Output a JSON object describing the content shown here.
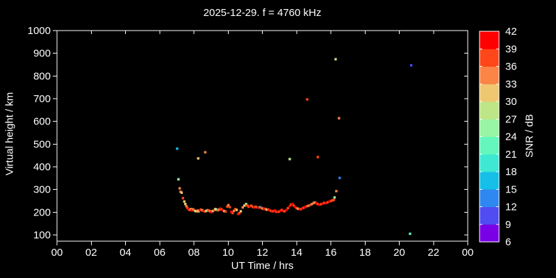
{
  "title": "2025-12-29. f = 4760 kHz",
  "axes": {
    "x": {
      "label": "UT Time / hrs",
      "tick_hours": [
        0,
        2,
        4,
        6,
        8,
        10,
        12,
        14,
        16,
        18,
        20,
        22,
        24
      ],
      "tick_labels": [
        "00",
        "02",
        "04",
        "06",
        "08",
        "10",
        "12",
        "14",
        "16",
        "18",
        "20",
        "22",
        "00"
      ]
    },
    "y": {
      "label": "Virtual height / km",
      "tick_values": [
        100,
        200,
        300,
        400,
        500,
        600,
        700,
        800,
        900,
        1000
      ]
    }
  },
  "colorbar": {
    "label": "SNR / dB",
    "tick_labels": [
      "42",
      "39",
      "36",
      "33",
      "30",
      "27",
      "24",
      "21",
      "18",
      "15",
      "12",
      "9",
      "6"
    ],
    "segments": [
      {
        "snr_min": 6,
        "snr_max": 9,
        "color": "#7A00E6"
      },
      {
        "snr_min": 9,
        "snr_max": 12,
        "color": "#4F4CF2"
      },
      {
        "snr_min": 12,
        "snr_max": 15,
        "color": "#2F87F0"
      },
      {
        "snr_min": 15,
        "snr_max": 18,
        "color": "#15BFE8"
      },
      {
        "snr_min": 18,
        "snr_max": 21,
        "color": "#3EE8D2"
      },
      {
        "snr_min": 21,
        "snr_max": 24,
        "color": "#64F6BC"
      },
      {
        "snr_min": 24,
        "snr_max": 27,
        "color": "#98F5A5"
      },
      {
        "snr_min": 27,
        "snr_max": 30,
        "color": "#BEE687"
      },
      {
        "snr_min": 30,
        "snr_max": 33,
        "color": "#EFC771"
      },
      {
        "snr_min": 33,
        "snr_max": 36,
        "color": "#FA8546"
      },
      {
        "snr_min": 36,
        "snr_max": 39,
        "color": "#FF4719"
      },
      {
        "snr_min": 39,
        "snr_max": 42,
        "color": "#FF0000"
      }
    ]
  },
  "chart_data": {
    "type": "scatter",
    "title": "2025-12-29. f = 4760 kHz",
    "xlabel": "UT Time / hrs",
    "ylabel": "Virtual height / km",
    "colorbar_label": "SNR / dB",
    "xlim": [
      0,
      24
    ],
    "ylim": [
      72,
      1000
    ],
    "grid": false,
    "points_format": [
      "ut_hour",
      "virtual_height_km",
      "snr_db"
    ],
    "points": [
      [
        7.1,
        345,
        24
      ],
      [
        7.17,
        305,
        35
      ],
      [
        7.22,
        290,
        34
      ],
      [
        7.28,
        286,
        32
      ],
      [
        7.36,
        262,
        38
      ],
      [
        7.44,
        247,
        32
      ],
      [
        7.5,
        236,
        31
      ],
      [
        7.56,
        226,
        34
      ],
      [
        7.62,
        219,
        37
      ],
      [
        7.68,
        213,
        40
      ],
      [
        7.75,
        210,
        38
      ],
      [
        7.82,
        214,
        34
      ],
      [
        7.88,
        208,
        40
      ],
      [
        7.95,
        213,
        33
      ],
      [
        8.02,
        209,
        38
      ],
      [
        8.08,
        205,
        27
      ],
      [
        8.15,
        204,
        31
      ],
      [
        8.22,
        207,
        34
      ],
      [
        8.28,
        204,
        32
      ],
      [
        8.35,
        209,
        40
      ],
      [
        8.42,
        212,
        38
      ],
      [
        8.5,
        208,
        35
      ],
      [
        8.58,
        205,
        40
      ],
      [
        8.65,
        203,
        37
      ],
      [
        8.72,
        206,
        24
      ],
      [
        8.8,
        209,
        34
      ],
      [
        8.88,
        207,
        38
      ],
      [
        8.95,
        204,
        33
      ],
      [
        9.02,
        201,
        40
      ],
      [
        9.1,
        205,
        30
      ],
      [
        9.18,
        209,
        38
      ],
      [
        9.25,
        214,
        31
      ],
      [
        9.32,
        211,
        24
      ],
      [
        9.4,
        208,
        38
      ],
      [
        9.48,
        212,
        33
      ],
      [
        9.55,
        216,
        40
      ],
      [
        9.62,
        212,
        37
      ],
      [
        9.7,
        208,
        40
      ],
      [
        9.78,
        205,
        31
      ],
      [
        9.85,
        203,
        38
      ],
      [
        9.95,
        225,
        36
      ],
      [
        10.02,
        231,
        33
      ],
      [
        10.1,
        222,
        38
      ],
      [
        10.18,
        202,
        40
      ],
      [
        10.26,
        196,
        37
      ],
      [
        10.34,
        206,
        33
      ],
      [
        10.42,
        214,
        36
      ],
      [
        10.5,
        210,
        31
      ],
      [
        10.58,
        192,
        39
      ],
      [
        10.66,
        196,
        36
      ],
      [
        10.74,
        204,
        31
      ],
      [
        10.85,
        221,
        33
      ],
      [
        10.95,
        229,
        31
      ],
      [
        11.05,
        236,
        24
      ],
      [
        11.12,
        230,
        37
      ],
      [
        11.2,
        224,
        38
      ],
      [
        11.28,
        227,
        40
      ],
      [
        11.36,
        229,
        36
      ],
      [
        11.44,
        223,
        38
      ],
      [
        11.52,
        221,
        40
      ],
      [
        11.6,
        224,
        37
      ],
      [
        11.68,
        222,
        38
      ],
      [
        11.76,
        220,
        40
      ],
      [
        11.86,
        222,
        16
      ],
      [
        11.94,
        219,
        38
      ],
      [
        12.02,
        216,
        33
      ],
      [
        12.1,
        213,
        40
      ],
      [
        12.18,
        215,
        37
      ],
      [
        12.26,
        211,
        31
      ],
      [
        12.34,
        212,
        38
      ],
      [
        12.42,
        209,
        40
      ],
      [
        12.5,
        206,
        38
      ],
      [
        12.58,
        203,
        40
      ],
      [
        12.66,
        205,
        37
      ],
      [
        12.74,
        208,
        40
      ],
      [
        12.82,
        202,
        38
      ],
      [
        12.9,
        201,
        40
      ],
      [
        12.98,
        203,
        38
      ],
      [
        13.06,
        207,
        40
      ],
      [
        13.14,
        210,
        37
      ],
      [
        13.22,
        206,
        40
      ],
      [
        13.3,
        204,
        38
      ],
      [
        13.4,
        210,
        40
      ],
      [
        13.5,
        218,
        37
      ],
      [
        13.6,
        227,
        40
      ],
      [
        13.68,
        234,
        38
      ],
      [
        13.76,
        236,
        40
      ],
      [
        13.84,
        229,
        38
      ],
      [
        13.92,
        223,
        40
      ],
      [
        14.0,
        218,
        37
      ],
      [
        14.1,
        215,
        31
      ],
      [
        14.18,
        213,
        40
      ],
      [
        14.26,
        214,
        38
      ],
      [
        14.34,
        217,
        40
      ],
      [
        14.42,
        220,
        37
      ],
      [
        14.5,
        223,
        40
      ],
      [
        14.6,
        226,
        38
      ],
      [
        14.7,
        229,
        35
      ],
      [
        14.8,
        232,
        37
      ],
      [
        14.9,
        236,
        35
      ],
      [
        15.0,
        241,
        35
      ],
      [
        15.08,
        243,
        33
      ],
      [
        15.16,
        239,
        40
      ],
      [
        15.24,
        236,
        38
      ],
      [
        15.32,
        233,
        40
      ],
      [
        15.42,
        235,
        38
      ],
      [
        15.52,
        238,
        40
      ],
      [
        15.62,
        241,
        37
      ],
      [
        15.72,
        240,
        40
      ],
      [
        15.82,
        244,
        38
      ],
      [
        15.92,
        247,
        40
      ],
      [
        16.02,
        250,
        36
      ],
      [
        16.1,
        252,
        38
      ],
      [
        16.17,
        254,
        36
      ],
      [
        16.22,
        265,
        26
      ],
      [
        16.32,
        293,
        35
      ],
      [
        16.52,
        351,
        13
      ],
      [
        7.02,
        480,
        16
      ],
      [
        8.25,
        437,
        31
      ],
      [
        8.66,
        464,
        35
      ],
      [
        13.6,
        434,
        29
      ],
      [
        14.62,
        697,
        37
      ],
      [
        15.24,
        443,
        36
      ],
      [
        16.28,
        874,
        29
      ],
      [
        16.48,
        614,
        35
      ],
      [
        20.63,
        105,
        22
      ],
      [
        20.7,
        847,
        10
      ]
    ]
  }
}
